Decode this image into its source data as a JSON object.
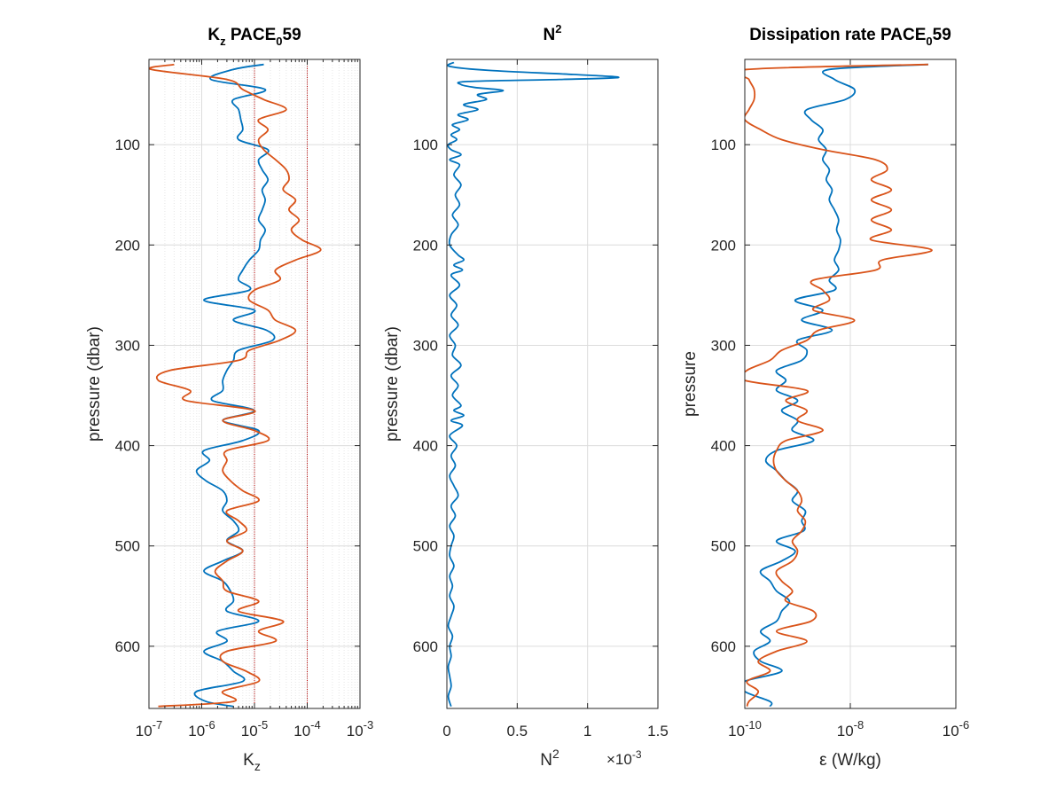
{
  "colors": {
    "series1": "#0072BD",
    "series2": "#D95319",
    "axes": "#262626",
    "grid": "#DCDCDC",
    "reference": "#C00000"
  },
  "chart_data": [
    {
      "type": "line",
      "title": "K",
      "title_sub": "z",
      "title_rest": " PACE",
      "title_sub2": "0",
      "title_tail": "59",
      "xlabel": "K",
      "xlabel_sub": "z",
      "ylabel": "pressure (dbar)",
      "xscale": "log",
      "xlim": [
        1e-07,
        0.001
      ],
      "ylim": [
        15,
        662
      ],
      "y_reversed": true,
      "grid": true,
      "minor_grid": true,
      "reference_lines_x": [
        1e-05,
        0.0001
      ],
      "xticks": [
        {
          "base": "10",
          "exp": "-7"
        },
        {
          "base": "10",
          "exp": "-6"
        },
        {
          "base": "10",
          "exp": "-5"
        },
        {
          "base": "10",
          "exp": "-4"
        },
        {
          "base": "10",
          "exp": "-3"
        }
      ],
      "yticks": [
        "100",
        "200",
        "300",
        "400",
        "500",
        "600"
      ],
      "y_pressure": [
        20,
        25,
        35,
        45,
        55,
        65,
        75,
        85,
        95,
        105,
        115,
        125,
        135,
        145,
        155,
        165,
        175,
        185,
        195,
        205,
        215,
        225,
        235,
        245,
        255,
        265,
        275,
        285,
        295,
        305,
        315,
        325,
        335,
        345,
        355,
        365,
        375,
        385,
        395,
        405,
        415,
        425,
        435,
        445,
        455,
        465,
        475,
        485,
        495,
        505,
        515,
        525,
        535,
        545,
        555,
        565,
        575,
        585,
        595,
        605,
        615,
        625,
        635,
        645,
        655,
        660
      ],
      "series": [
        {
          "values": [
            1.5e-05,
            4e-06,
            1.5e-06,
            1.6e-05,
            4e-06,
            5e-06,
            5.5e-06,
            6e-06,
            5e-06,
            1.8e-05,
            1.2e-05,
            1.4e-05,
            1.8e-05,
            1.4e-05,
            1.6e-05,
            1.4e-05,
            1.2e-05,
            1.6e-05,
            1.3e-05,
            1.2e-05,
            8e-06,
            6e-06,
            5e-06,
            8e-06,
            1.1e-06,
            1e-05,
            4e-06,
            1.7e-05,
            2.2e-05,
            5e-06,
            4e-06,
            3e-06,
            2.5e-06,
            2.5e-06,
            1.6e-06,
            1e-05,
            2.5e-06,
            1.2e-05,
            6e-06,
            1.1e-06,
            1.4e-06,
            8e-07,
            1.2e-06,
            2.5e-06,
            3e-06,
            2.5e-06,
            4e-06,
            5e-06,
            3e-06,
            6e-06,
            2.5e-06,
            1.1e-06,
            2.5e-06,
            3.5e-06,
            4e-06,
            3e-06,
            1.2e-05,
            2e-06,
            3e-06,
            1.1e-06,
            2.5e-06,
            4e-06,
            6e-06,
            8e-07,
            1.2e-06,
            4e-06
          ]
        },
        {
          "values": [
            3e-07,
            1.1e-07,
            3e-06,
            6e-06,
            1.5e-05,
            4e-05,
            1.2e-05,
            1.8e-05,
            1.2e-05,
            1.5e-05,
            2.5e-05,
            4e-05,
            4.5e-05,
            3.5e-05,
            6e-05,
            4.5e-05,
            7e-05,
            5e-05,
            8e-05,
            0.00018,
            6e-05,
            2.5e-05,
            3e-05,
            1e-05,
            8e-06,
            1.8e-05,
            2.5e-05,
            6e-05,
            3e-05,
            8e-06,
            5e-06,
            2.5e-07,
            1.5e-07,
            6e-07,
            5e-07,
            1e-05,
            2.5e-06,
            1e-05,
            1.8e-05,
            3e-06,
            3e-06,
            2.5e-06,
            3.5e-06,
            6e-06,
            1.2e-05,
            3e-06,
            5e-06,
            7e-06,
            3e-06,
            6e-06,
            3e-06,
            1.8e-06,
            2.5e-06,
            3e-06,
            1.2e-05,
            5e-06,
            3.5e-05,
            1.2e-05,
            2.5e-05,
            3e-06,
            2.5e-06,
            7e-06,
            1.2e-05,
            2.5e-06,
            4e-06,
            1.5e-07
          ]
        }
      ]
    },
    {
      "type": "line",
      "title": "N",
      "title_sup": "2",
      "xlabel": "N",
      "xlabel_sup": "2",
      "ylabel": "pressure (dbar)",
      "xscale": "linear",
      "x_multiplier": "×10",
      "x_multiplier_exp": "-3",
      "xlim": [
        0,
        1.5
      ],
      "ylim": [
        15,
        662
      ],
      "y_reversed": true,
      "grid": true,
      "xticks": [
        "0",
        "0.5",
        "1",
        "1.5"
      ],
      "xtick_values": [
        0,
        0.5,
        1,
        1.5
      ],
      "yticks": [
        "100",
        "200",
        "300",
        "400",
        "500",
        "600"
      ],
      "series": [
        {
          "y": [
            18,
            22,
            26,
            30,
            33,
            35,
            37,
            40,
            43,
            46,
            50,
            55,
            60,
            65,
            70,
            75,
            80,
            85,
            90,
            95,
            100,
            105,
            110,
            115,
            120,
            130,
            140,
            150,
            160,
            170,
            180,
            190,
            200,
            210,
            215,
            220,
            225,
            230,
            240,
            250,
            260,
            270,
            280,
            290,
            300,
            310,
            320,
            330,
            340,
            350,
            360,
            365,
            370,
            375,
            380,
            390,
            400,
            410,
            420,
            430,
            440,
            450,
            460,
            470,
            480,
            490,
            500,
            510,
            520,
            530,
            540,
            550,
            560,
            570,
            580,
            590,
            600,
            610,
            620,
            630,
            640,
            650,
            660
          ],
          "values": [
            0.05,
            0.02,
            0.3,
            0.9,
            1.22,
            0.8,
            0.15,
            0.1,
            0.2,
            0.4,
            0.22,
            0.28,
            0.12,
            0.22,
            0.08,
            0.15,
            0.04,
            0.09,
            0.03,
            0.07,
            0.01,
            0.03,
            0.1,
            0.02,
            0.09,
            0.05,
            0.1,
            0.06,
            0.09,
            0.04,
            0.08,
            0.03,
            0.02,
            0.08,
            0.12,
            0.05,
            0.11,
            0.03,
            0.09,
            0.02,
            0.07,
            0.03,
            0.08,
            0.02,
            0.06,
            0.04,
            0.1,
            0.03,
            0.08,
            0.04,
            0.1,
            0.05,
            0.12,
            0.03,
            0.11,
            0.02,
            0.07,
            0.03,
            0.06,
            0.02,
            0.05,
            0.08,
            0.03,
            0.06,
            0.02,
            0.05,
            0.03,
            0.02,
            0.05,
            0.02,
            0.04,
            0.02,
            0.05,
            0.03,
            0.01,
            0.04,
            0.02,
            0.03,
            0.01,
            0.02,
            0.03,
            0.01,
            0.03
          ]
        }
      ]
    },
    {
      "type": "line",
      "title": "Dissipation rate PACE",
      "title_sub": "0",
      "title_tail": "59",
      "xlabel": "ε (W/kg)",
      "ylabel": "pressure",
      "xscale": "log",
      "xlim": [
        1e-10,
        1e-06
      ],
      "ylim": [
        15,
        662
      ],
      "y_reversed": true,
      "grid": true,
      "xticks": [
        {
          "base": "10",
          "exp": "-10"
        },
        {
          "base": "10",
          "exp": "-8"
        },
        {
          "base": "10",
          "exp": "-6"
        }
      ],
      "yticks": [
        "100",
        "200",
        "300",
        "400",
        "500",
        "600"
      ],
      "y_pressure": [
        20,
        25,
        35,
        45,
        55,
        65,
        75,
        85,
        95,
        105,
        115,
        125,
        135,
        145,
        155,
        165,
        175,
        185,
        195,
        205,
        215,
        225,
        235,
        245,
        255,
        265,
        275,
        285,
        295,
        305,
        315,
        325,
        335,
        345,
        355,
        365,
        375,
        385,
        395,
        405,
        415,
        425,
        435,
        445,
        455,
        465,
        475,
        485,
        495,
        505,
        515,
        525,
        535,
        545,
        555,
        565,
        575,
        585,
        595,
        605,
        615,
        625,
        635,
        645,
        655,
        660
      ],
      "series": [
        {
          "values": [
            3e-07,
            4e-09,
            5e-09,
            1.2e-08,
            8e-09,
            1.5e-09,
            1.8e-09,
            3e-09,
            2.5e-09,
            3.5e-09,
            3e-09,
            4e-09,
            3.5e-09,
            4.5e-09,
            4e-09,
            5e-09,
            6e-09,
            5.5e-09,
            6.5e-09,
            6e-09,
            5e-09,
            6e-09,
            4e-09,
            5e-09,
            9e-10,
            3e-09,
            1.2e-09,
            4.5e-09,
            1e-09,
            1.5e-09,
            1.2e-09,
            4e-10,
            6e-10,
            4e-10,
            1e-09,
            5e-10,
            1e-09,
            8e-10,
            2e-09,
            4e-10,
            2.5e-10,
            4e-10,
            6e-10,
            1e-09,
            8e-10,
            1.4e-09,
            1.2e-09,
            1.3e-09,
            4e-10,
            9e-10,
            5e-10,
            2e-10,
            3e-10,
            4e-10,
            7e-10,
            5e-10,
            4e-10,
            2e-10,
            3e-10,
            1.5e-10,
            2e-10,
            5e-10,
            1e-10,
            1e-10,
            3e-10,
            3e-10
          ]
        },
        {
          "values": [
            3e-07,
            1.1e-10,
            1.2e-10,
            1.5e-10,
            1.5e-10,
            1.2e-10,
            1e-10,
            2e-10,
            5e-10,
            3e-09,
            3e-08,
            5e-08,
            2.5e-08,
            6e-08,
            2.5e-08,
            6e-08,
            2.5e-08,
            6e-08,
            2.5e-08,
            3.5e-07,
            4e-08,
            3e-08,
            2e-09,
            3e-09,
            4e-09,
            2e-09,
            1.2e-08,
            2.5e-09,
            1.5e-09,
            5e-10,
            3e-10,
            1.1e-10,
            1e-10,
            1.5e-09,
            6e-10,
            1.5e-09,
            1e-09,
            3e-09,
            6e-10,
            4e-10,
            3.5e-10,
            4e-10,
            6e-10,
            1e-09,
            1.2e-09,
            1e-09,
            1.4e-09,
            1.2e-09,
            8e-10,
            1e-09,
            8e-10,
            4e-10,
            5e-10,
            8e-10,
            6e-10,
            2e-09,
            1.8e-09,
            4e-10,
            1.5e-09,
            4e-10,
            1.8e-10,
            3e-10,
            1.1e-10,
            1.8e-10,
            1.2e-10,
            1.1e-10
          ]
        }
      ]
    }
  ]
}
